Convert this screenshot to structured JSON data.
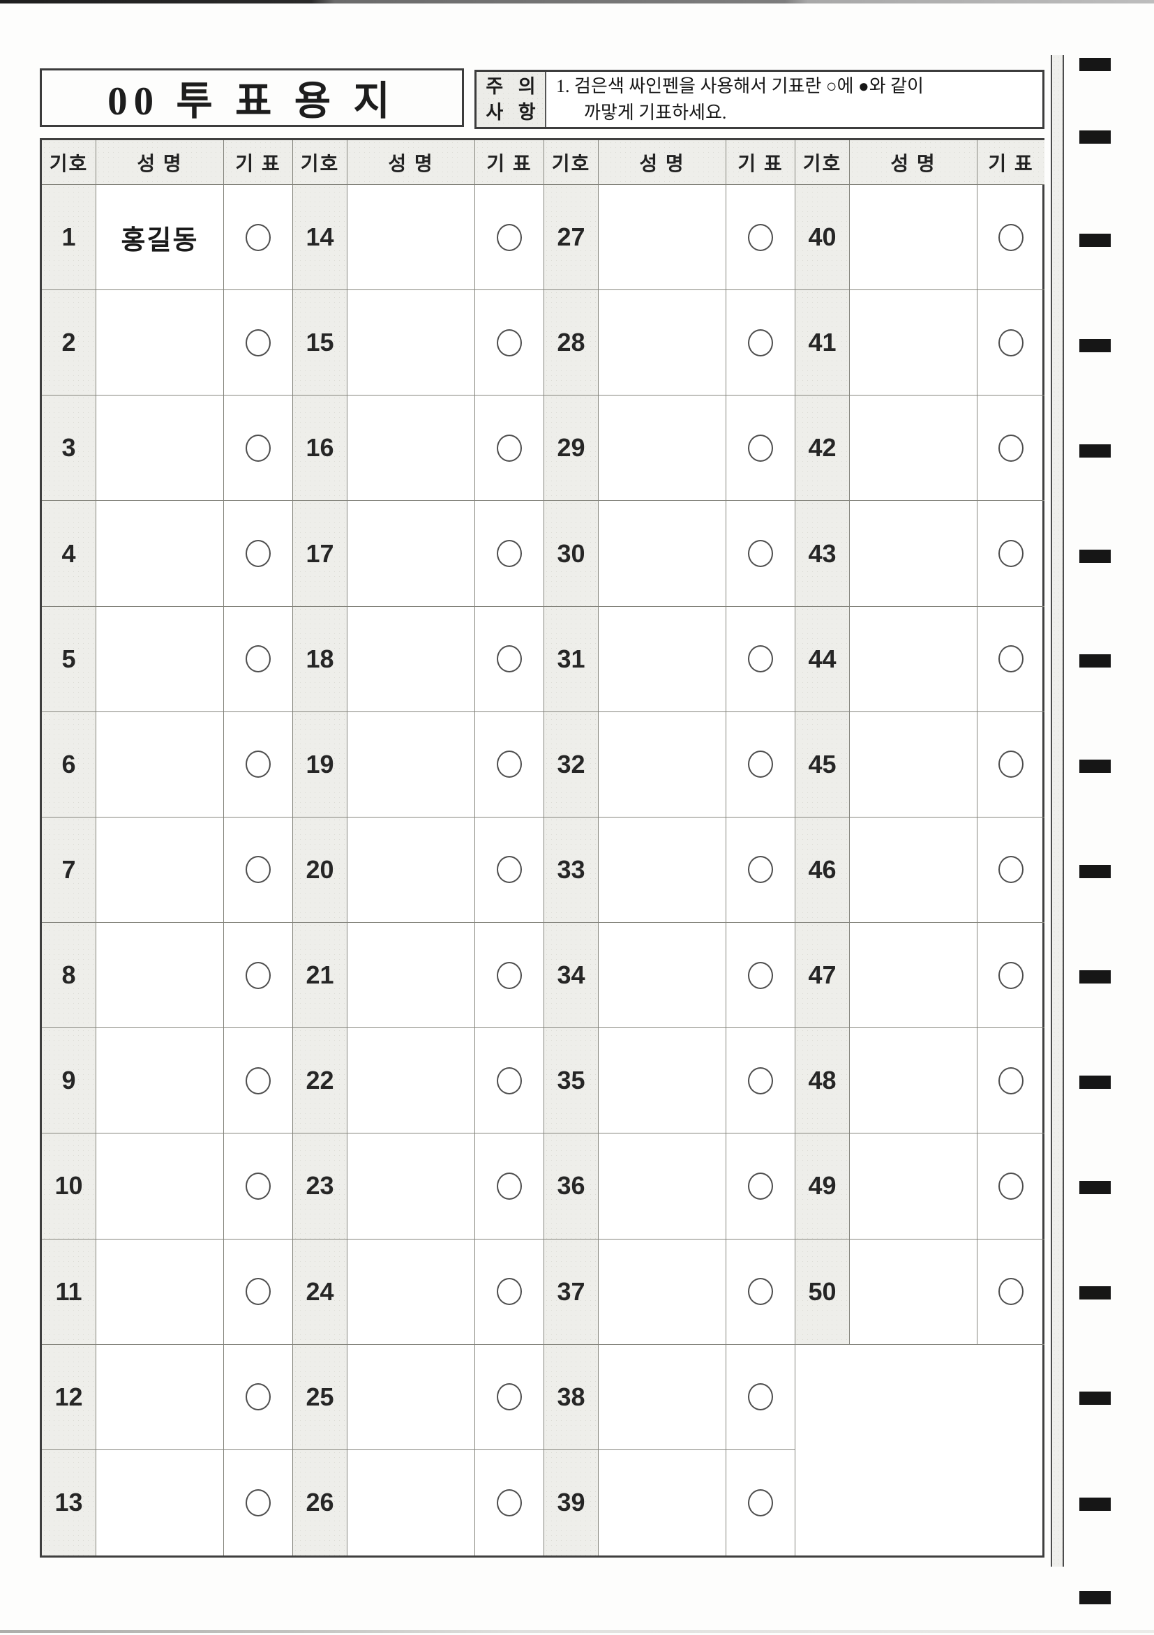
{
  "title": "00 투 표 용 지",
  "notice": {
    "label_line1": "주 의",
    "label_line2": "사 항",
    "line1": "1. 검은색 싸인펜을 사용해서 기표란 ○에 ●와 같이",
    "line2": "까맣게 기표하세요."
  },
  "table": {
    "headers": {
      "number": "기호",
      "name": "성 명",
      "mark": "기 표"
    },
    "groups": [
      {
        "rows": [
          {
            "no": "1",
            "name": "홍길동",
            "circle": true
          },
          {
            "no": "2",
            "name": "",
            "circle": true
          },
          {
            "no": "3",
            "name": "",
            "circle": true
          },
          {
            "no": "4",
            "name": "",
            "circle": true
          },
          {
            "no": "5",
            "name": "",
            "circle": true
          },
          {
            "no": "6",
            "name": "",
            "circle": true
          },
          {
            "no": "7",
            "name": "",
            "circle": true
          },
          {
            "no": "8",
            "name": "",
            "circle": true
          },
          {
            "no": "9",
            "name": "",
            "circle": true
          },
          {
            "no": "10",
            "name": "",
            "circle": true
          },
          {
            "no": "11",
            "name": "",
            "circle": true
          },
          {
            "no": "12",
            "name": "",
            "circle": true
          },
          {
            "no": "13",
            "name": "",
            "circle": true
          }
        ]
      },
      {
        "rows": [
          {
            "no": "14",
            "name": "",
            "circle": true
          },
          {
            "no": "15",
            "name": "",
            "circle": true
          },
          {
            "no": "16",
            "name": "",
            "circle": true
          },
          {
            "no": "17",
            "name": "",
            "circle": true
          },
          {
            "no": "18",
            "name": "",
            "circle": true
          },
          {
            "no": "19",
            "name": "",
            "circle": true
          },
          {
            "no": "20",
            "name": "",
            "circle": true
          },
          {
            "no": "21",
            "name": "",
            "circle": true
          },
          {
            "no": "22",
            "name": "",
            "circle": true
          },
          {
            "no": "23",
            "name": "",
            "circle": true
          },
          {
            "no": "24",
            "name": "",
            "circle": true
          },
          {
            "no": "25",
            "name": "",
            "circle": true
          },
          {
            "no": "26",
            "name": "",
            "circle": true
          }
        ]
      },
      {
        "rows": [
          {
            "no": "27",
            "name": "",
            "circle": true
          },
          {
            "no": "28",
            "name": "",
            "circle": true
          },
          {
            "no": "29",
            "name": "",
            "circle": true
          },
          {
            "no": "30",
            "name": "",
            "circle": true
          },
          {
            "no": "31",
            "name": "",
            "circle": true
          },
          {
            "no": "32",
            "name": "",
            "circle": true
          },
          {
            "no": "33",
            "name": "",
            "circle": true
          },
          {
            "no": "34",
            "name": "",
            "circle": true
          },
          {
            "no": "35",
            "name": "",
            "circle": true
          },
          {
            "no": "36",
            "name": "",
            "circle": true
          },
          {
            "no": "37",
            "name": "",
            "circle": true
          },
          {
            "no": "38",
            "name": "",
            "circle": true
          },
          {
            "no": "39",
            "name": "",
            "circle": true
          }
        ]
      },
      {
        "merged_empty_rows": 2,
        "rows": [
          {
            "no": "40",
            "name": "",
            "circle": true
          },
          {
            "no": "41",
            "name": "",
            "circle": true
          },
          {
            "no": "42",
            "name": "",
            "circle": true
          },
          {
            "no": "43",
            "name": "",
            "circle": true
          },
          {
            "no": "44",
            "name": "",
            "circle": true
          },
          {
            "no": "45",
            "name": "",
            "circle": true
          },
          {
            "no": "46",
            "name": "",
            "circle": true
          },
          {
            "no": "47",
            "name": "",
            "circle": true
          },
          {
            "no": "48",
            "name": "",
            "circle": true
          },
          {
            "no": "49",
            "name": "",
            "circle": true
          },
          {
            "no": "50",
            "name": "",
            "circle": true
          }
        ]
      }
    ]
  },
  "timing_marks": {
    "count": 16,
    "centers_y": [
      92,
      196,
      344,
      495,
      646,
      797,
      947,
      1098,
      1249,
      1400,
      1551,
      1702,
      1853,
      2004,
      2156,
      2290
    ]
  },
  "colors": {
    "shade_bg": "#eeeeea",
    "grid_line": "#84847c",
    "outer_border": "#3f3f3f",
    "mark_black": "#161616"
  }
}
